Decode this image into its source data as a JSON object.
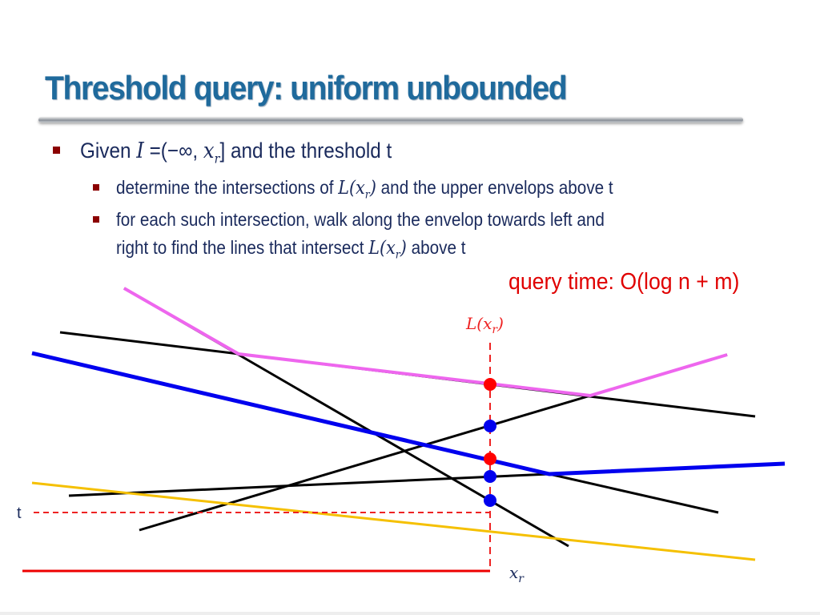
{
  "slide": {
    "title": "Threshold query: uniform unbounded",
    "bullets": [
      {
        "pre": "Given ",
        "math1": "I",
        "mid": " =(−∞, ",
        "math2": "x",
        "sub": "r",
        "post": "] and the threshold t"
      },
      {
        "pre": "determine the intersections of ",
        "math": "L(x",
        "sub": "r",
        "close": ")",
        "post": " and the upper envelops above t"
      },
      {
        "line1": "for each such intersection, walk along the envelop towards left and",
        "pre": "right to find the lines that intersect ",
        "math": "L(x",
        "sub": "r",
        "close": ")",
        "post": " above t"
      }
    ],
    "query_time": "query time: O(log n + m)"
  },
  "diagram": {
    "labels": {
      "query_line": "L(x",
      "query_line_sub": "r",
      "query_line_close": ")",
      "threshold": "t",
      "x_r": "x",
      "x_r_sub": "r"
    },
    "colors": {
      "upper_envelope": "#ee66ee",
      "second_envelope": "#0000ee",
      "lines": "#000000",
      "threshold_line": "#f5c000",
      "query": "#ff0000",
      "text": "#1a2a5c",
      "title": "#1f6a9c"
    },
    "intersection_points": [
      {
        "color": "red",
        "envelope": "upper"
      },
      {
        "color": "blue"
      },
      {
        "color": "red",
        "envelope": "second"
      },
      {
        "color": "blue"
      },
      {
        "color": "blue"
      }
    ]
  }
}
